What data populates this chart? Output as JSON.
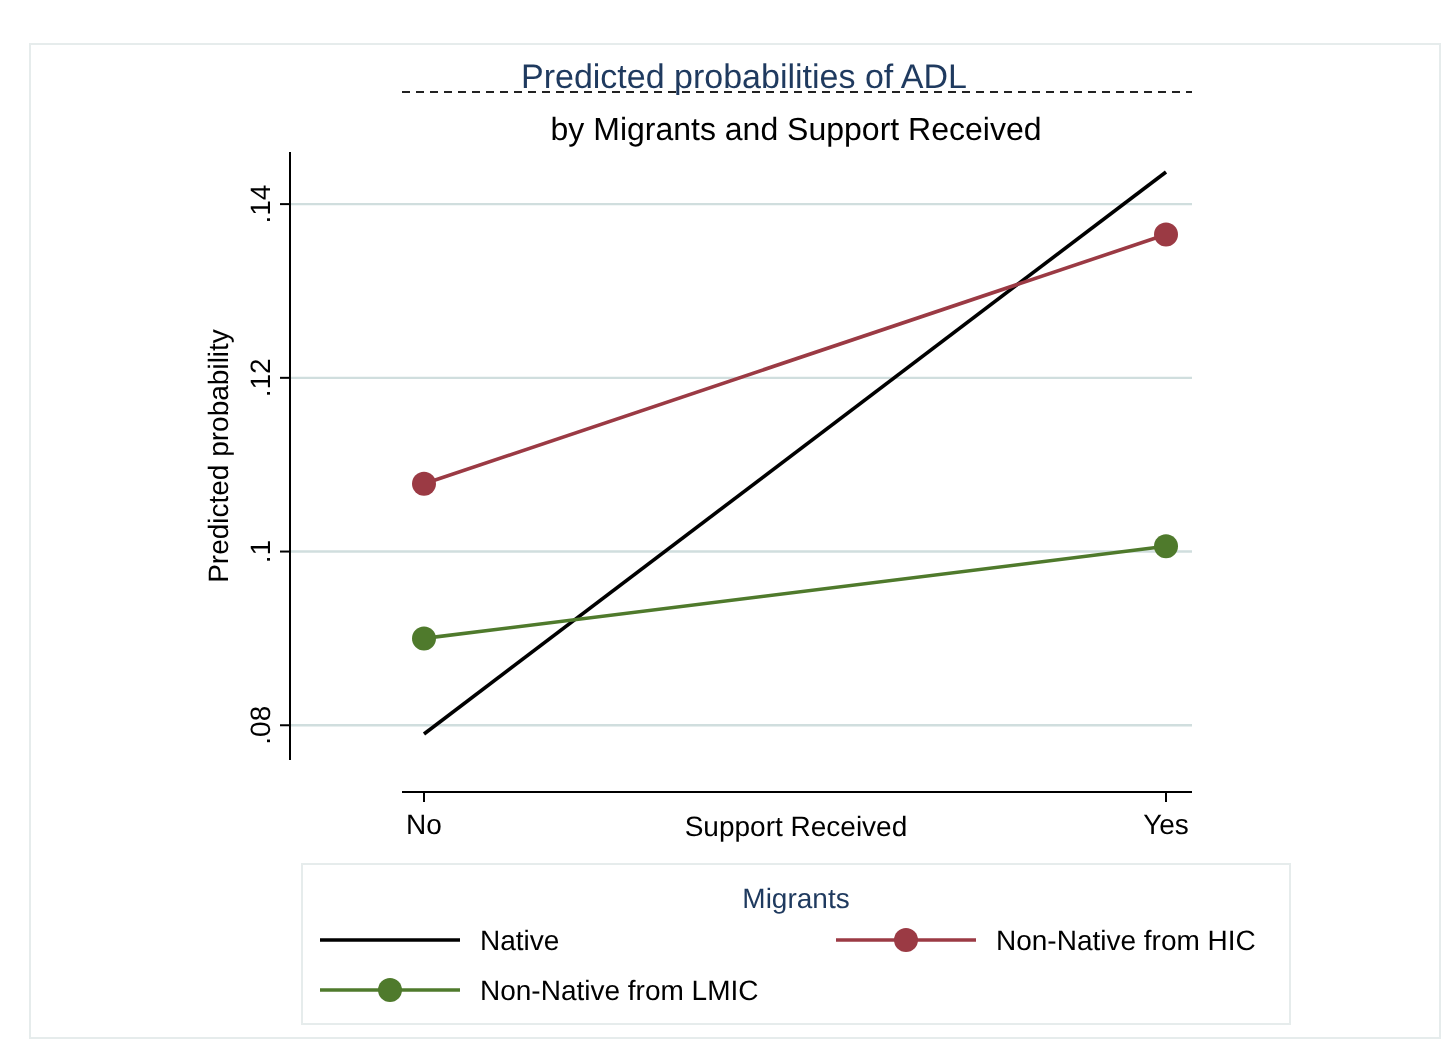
{
  "chart_data": {
    "type": "line",
    "title": "Predicted probabilities of ADL",
    "subtitle": "by Migrants and Support Received",
    "xlabel": "Support Received",
    "ylabel": "Predicted probability",
    "legend_title": "Migrants",
    "categories": [
      "No",
      "Yes"
    ],
    "series": [
      {
        "name": "Native",
        "color": "#000000",
        "values": [
          0.079,
          0.1437
        ],
        "marker": "none"
      },
      {
        "name": "Non-Native from HIC",
        "color": "#9b3a44",
        "values": [
          0.1078,
          0.1365
        ],
        "marker": "circle"
      },
      {
        "name": "Non-Native from LMIC",
        "color": "#4f7a2c",
        "values": [
          0.09,
          0.1006
        ],
        "marker": "circle"
      }
    ],
    "ylim": [
      0.076,
      0.146
    ],
    "yticks": [
      {
        "value": 0.08,
        "label": ".08"
      },
      {
        "value": 0.1,
        "label": ".1"
      },
      {
        "value": 0.12,
        "label": ".12"
      },
      {
        "value": 0.14,
        "label": ".14"
      }
    ],
    "grid": "y",
    "legend": "bottom"
  }
}
